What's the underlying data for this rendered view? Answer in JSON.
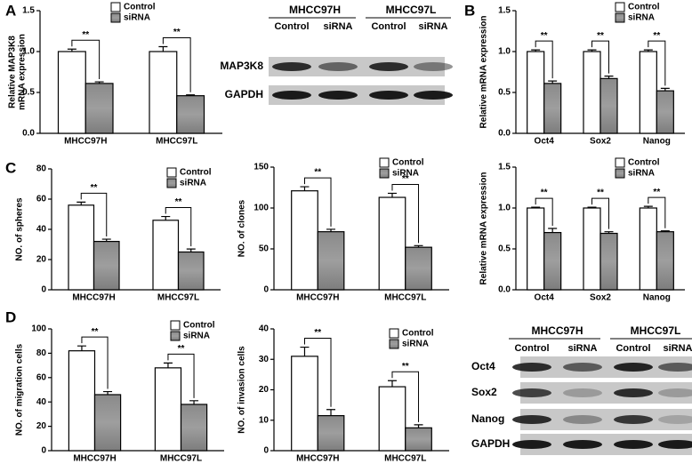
{
  "panel_labels": [
    "A",
    "B",
    "C",
    "D"
  ],
  "chart_data": [
    {
      "type": "bar",
      "ylabel": [
        "Relative MAP3K8",
        "mRNA expression"
      ],
      "categories": [
        "MHCC97H",
        "MHCC97L"
      ],
      "series": [
        {
          "name": "Control",
          "color": "#ffffff",
          "values": [
            1.0,
            1.0
          ],
          "errors": [
            0.03,
            0.06
          ]
        },
        {
          "name": "siRNA",
          "color": "#8c8c8c",
          "values": [
            0.61,
            0.46
          ],
          "errors": [
            0.02,
            0.01
          ]
        }
      ],
      "annotations": [
        "**",
        "**"
      ],
      "ylim": [
        0,
        1.5
      ],
      "yticks": [
        {
          "value": 0,
          "label": "0.0"
        },
        0.5,
        {
          "value": 1,
          "label": "1.0"
        },
        1.5
      ]
    },
    {
      "type": "bar",
      "ylabel": "Relative mRNA expression",
      "categories": [
        "Oct4",
        "Sox2",
        "Nanog"
      ],
      "series": [
        {
          "name": "Control",
          "color": "#ffffff",
          "values": [
            1.0,
            1.0,
            1.0
          ],
          "errors": [
            0.02,
            0.02,
            0.02
          ]
        },
        {
          "name": "siRNA",
          "color": "#8c8c8c",
          "values": [
            0.61,
            0.67,
            0.52
          ],
          "errors": [
            0.03,
            0.03,
            0.03
          ]
        }
      ],
      "annotations": [
        "**",
        "**",
        "**"
      ],
      "ylim": [
        0,
        1.5
      ],
      "yticks": [
        {
          "value": 0,
          "label": "0.0"
        },
        0.5,
        {
          "value": 1,
          "label": "1.0"
        },
        1.5
      ]
    },
    {
      "type": "bar",
      "ylabel": "NO. of spheres",
      "categories": [
        "MHCC97H",
        "MHCC97L"
      ],
      "series": [
        {
          "name": "Control",
          "color": "#ffffff",
          "values": [
            56,
            46
          ],
          "errors": [
            2,
            2.5
          ]
        },
        {
          "name": "siRNA",
          "color": "#8c8c8c",
          "values": [
            32,
            25
          ],
          "errors": [
            1.5,
            2
          ]
        }
      ],
      "annotations": [
        "**",
        "**"
      ],
      "ylim": [
        0,
        80
      ],
      "yticks": [
        0,
        20,
        40,
        60,
        80
      ]
    },
    {
      "type": "bar",
      "ylabel": "NO. of clones",
      "categories": [
        "MHCC97H",
        "MHCC97L"
      ],
      "series": [
        {
          "name": "Control",
          "color": "#ffffff",
          "values": [
            121,
            113
          ],
          "errors": [
            5,
            5
          ]
        },
        {
          "name": "siRNA",
          "color": "#8c8c8c",
          "values": [
            71,
            52
          ],
          "errors": [
            3,
            2
          ]
        }
      ],
      "annotations": [
        "**",
        "**"
      ],
      "ylim": [
        0,
        150
      ],
      "yticks": [
        0,
        50,
        100,
        150
      ]
    },
    {
      "type": "bar",
      "ylabel": "Relative mRNA expression",
      "categories": [
        "Oct4",
        "Sox2",
        "Nanog"
      ],
      "series": [
        {
          "name": "Control",
          "color": "#ffffff",
          "values": [
            1.0,
            1.0,
            1.0
          ],
          "errors": [
            0.01,
            0.01,
            0.02
          ]
        },
        {
          "name": "siRNA",
          "color": "#8c8c8c",
          "values": [
            0.7,
            0.69,
            0.71
          ],
          "errors": [
            0.05,
            0.02,
            0.01
          ]
        }
      ],
      "annotations": [
        "**",
        "**",
        "**"
      ],
      "ylim": [
        0,
        1.5
      ],
      "yticks": [
        {
          "value": 0,
          "label": "0.0"
        },
        0.5,
        {
          "value": 1,
          "label": "1.0"
        },
        1.5
      ]
    },
    {
      "type": "bar",
      "ylabel": "NO. of migration cells",
      "categories": [
        "MHCC97H",
        "MHCC97L"
      ],
      "series": [
        {
          "name": "Control",
          "color": "#ffffff",
          "values": [
            82,
            68
          ],
          "errors": [
            4,
            4
          ]
        },
        {
          "name": "siRNA",
          "color": "#8c8c8c",
          "values": [
            46,
            38
          ],
          "errors": [
            2.5,
            3
          ]
        }
      ],
      "annotations": [
        "**",
        "**"
      ],
      "ylim": [
        0,
        100
      ],
      "yticks": [
        0,
        20,
        40,
        60,
        80,
        100
      ]
    },
    {
      "type": "bar",
      "ylabel": "NO. of invasion cells",
      "categories": [
        "MHCC97H",
        "MHCC97L"
      ],
      "series": [
        {
          "name": "Control",
          "color": "#ffffff",
          "values": [
            31,
            21
          ],
          "errors": [
            3,
            2
          ]
        },
        {
          "name": "siRNA",
          "color": "#8c8c8c",
          "values": [
            11.5,
            7.5
          ],
          "errors": [
            2,
            1
          ]
        }
      ],
      "annotations": [
        "**",
        "**"
      ],
      "ylim": [
        0,
        40
      ],
      "yticks": [
        0,
        10,
        20,
        30,
        40
      ]
    }
  ],
  "blots": [
    {
      "groups": [
        "MHCC97H",
        "MHCC97L"
      ],
      "lanes": [
        "Control",
        "siRNA",
        "Control",
        "siRNA"
      ],
      "rows": [
        "MAP3K8",
        "GAPDH"
      ]
    },
    {
      "groups": [
        "MHCC97H",
        "MHCC97L"
      ],
      "lanes": [
        "Control",
        "siRNA",
        "Control",
        "siRNA"
      ],
      "rows": [
        "Oct4",
        "Sox2",
        "Nanog",
        "GAPDH"
      ]
    }
  ]
}
